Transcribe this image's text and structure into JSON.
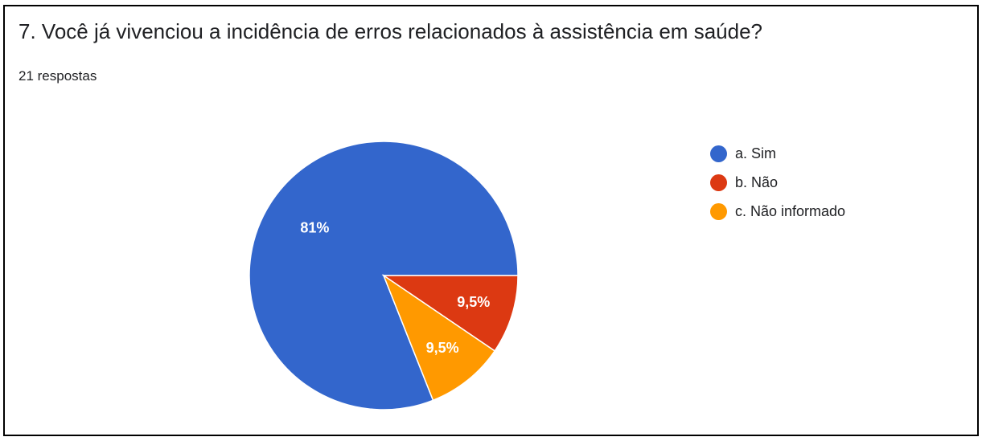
{
  "question": {
    "title": "7. Você já vivenciou a incidência de erros relacionados à assistência em saúde?",
    "responses": "21 respostas"
  },
  "chart_data": {
    "type": "pie",
    "slices": [
      {
        "label": "a. Sim",
        "value": 81,
        "display": "81%",
        "color": "#3366cc"
      },
      {
        "label": "b. Não",
        "value": 9.5,
        "display": "9,5%",
        "color": "#dc3912"
      },
      {
        "label": "c. Não informado",
        "value": 9.5,
        "display": "9,5%",
        "color": "#ff9900"
      }
    ],
    "legend_position": "right"
  }
}
